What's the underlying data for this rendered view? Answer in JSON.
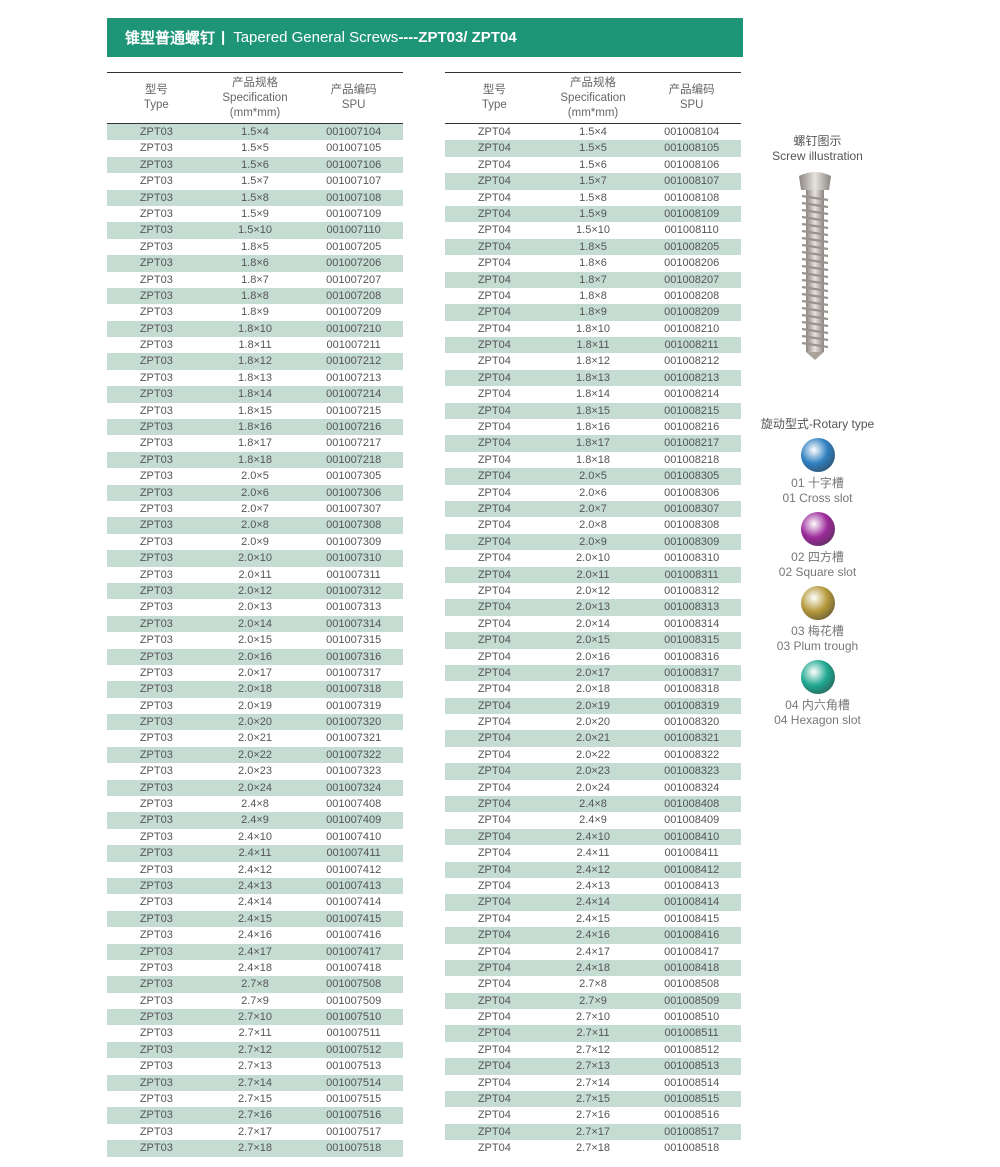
{
  "header": {
    "title_cn": "锥型普通螺钉",
    "separator": "|",
    "title_en": "Tapered General Screws",
    "title_code": "----ZPT03/ ZPT04",
    "color": "#1f9577"
  },
  "columns": [
    {
      "cn": "型号",
      "en": "Type"
    },
    {
      "cn": "产品规格",
      "en": "Specification",
      "unit": "(mm*mm)"
    },
    {
      "cn": "产品编码",
      "en": "SPU"
    }
  ],
  "row_shade_color": "#c5dcd3",
  "left_table": {
    "rows": [
      [
        "ZPT03",
        "1.5×4",
        "001007104"
      ],
      [
        "ZPT03",
        "1.5×5",
        "001007105"
      ],
      [
        "ZPT03",
        "1.5×6",
        "001007106"
      ],
      [
        "ZPT03",
        "1.5×7",
        "001007107"
      ],
      [
        "ZPT03",
        "1.5×8",
        "001007108"
      ],
      [
        "ZPT03",
        "1.5×9",
        "001007109"
      ],
      [
        "ZPT03",
        "1.5×10",
        "001007110"
      ],
      [
        "ZPT03",
        "1.8×5",
        "001007205"
      ],
      [
        "ZPT03",
        "1.8×6",
        "001007206"
      ],
      [
        "ZPT03",
        "1.8×7",
        "001007207"
      ],
      [
        "ZPT03",
        "1.8×8",
        "001007208"
      ],
      [
        "ZPT03",
        "1.8×9",
        "001007209"
      ],
      [
        "ZPT03",
        "1.8×10",
        "001007210"
      ],
      [
        "ZPT03",
        "1.8×11",
        "001007211"
      ],
      [
        "ZPT03",
        "1.8×12",
        "001007212"
      ],
      [
        "ZPT03",
        "1.8×13",
        "001007213"
      ],
      [
        "ZPT03",
        "1.8×14",
        "001007214"
      ],
      [
        "ZPT03",
        "1.8×15",
        "001007215"
      ],
      [
        "ZPT03",
        "1.8×16",
        "001007216"
      ],
      [
        "ZPT03",
        "1.8×17",
        "001007217"
      ],
      [
        "ZPT03",
        "1.8×18",
        "001007218"
      ],
      [
        "ZPT03",
        "2.0×5",
        "001007305"
      ],
      [
        "ZPT03",
        "2.0×6",
        "001007306"
      ],
      [
        "ZPT03",
        "2.0×7",
        "001007307"
      ],
      [
        "ZPT03",
        "2.0×8",
        "001007308"
      ],
      [
        "ZPT03",
        "2.0×9",
        "001007309"
      ],
      [
        "ZPT03",
        "2.0×10",
        "001007310"
      ],
      [
        "ZPT03",
        "2.0×11",
        "001007311"
      ],
      [
        "ZPT03",
        "2.0×12",
        "001007312"
      ],
      [
        "ZPT03",
        "2.0×13",
        "001007313"
      ],
      [
        "ZPT03",
        "2.0×14",
        "001007314"
      ],
      [
        "ZPT03",
        "2.0×15",
        "001007315"
      ],
      [
        "ZPT03",
        "2.0×16",
        "001007316"
      ],
      [
        "ZPT03",
        "2.0×17",
        "001007317"
      ],
      [
        "ZPT03",
        "2.0×18",
        "001007318"
      ],
      [
        "ZPT03",
        "2.0×19",
        "001007319"
      ],
      [
        "ZPT03",
        "2.0×20",
        "001007320"
      ],
      [
        "ZPT03",
        "2.0×21",
        "001007321"
      ],
      [
        "ZPT03",
        "2.0×22",
        "001007322"
      ],
      [
        "ZPT03",
        "2.0×23",
        "001007323"
      ],
      [
        "ZPT03",
        "2.0×24",
        "001007324"
      ],
      [
        "ZPT03",
        "2.4×8",
        "001007408"
      ],
      [
        "ZPT03",
        "2.4×9",
        "001007409"
      ],
      [
        "ZPT03",
        "2.4×10",
        "001007410"
      ],
      [
        "ZPT03",
        "2.4×11",
        "001007411"
      ],
      [
        "ZPT03",
        "2.4×12",
        "001007412"
      ],
      [
        "ZPT03",
        "2.4×13",
        "001007413"
      ],
      [
        "ZPT03",
        "2.4×14",
        "001007414"
      ],
      [
        "ZPT03",
        "2.4×15",
        "001007415"
      ],
      [
        "ZPT03",
        "2.4×16",
        "001007416"
      ],
      [
        "ZPT03",
        "2.4×17",
        "001007417"
      ],
      [
        "ZPT03",
        "2.4×18",
        "001007418"
      ],
      [
        "ZPT03",
        "2.7×8",
        "001007508"
      ],
      [
        "ZPT03",
        "2.7×9",
        "001007509"
      ],
      [
        "ZPT03",
        "2.7×10",
        "001007510"
      ],
      [
        "ZPT03",
        "2.7×11",
        "001007511"
      ],
      [
        "ZPT03",
        "2.7×12",
        "001007512"
      ],
      [
        "ZPT03",
        "2.7×13",
        "001007513"
      ],
      [
        "ZPT03",
        "2.7×14",
        "001007514"
      ],
      [
        "ZPT03",
        "2.7×15",
        "001007515"
      ],
      [
        "ZPT03",
        "2.7×16",
        "001007516"
      ],
      [
        "ZPT03",
        "2.7×17",
        "001007517"
      ],
      [
        "ZPT03",
        "2.7×18",
        "001007518"
      ]
    ]
  },
  "right_table": {
    "rows": [
      [
        "ZPT04",
        "1.5×4",
        "001008104"
      ],
      [
        "ZPT04",
        "1.5×5",
        "001008105"
      ],
      [
        "ZPT04",
        "1.5×6",
        "001008106"
      ],
      [
        "ZPT04",
        "1.5×7",
        "001008107"
      ],
      [
        "ZPT04",
        "1.5×8",
        "001008108"
      ],
      [
        "ZPT04",
        "1.5×9",
        "001008109"
      ],
      [
        "ZPT04",
        "1.5×10",
        "001008110"
      ],
      [
        "ZPT04",
        "1.8×5",
        "001008205"
      ],
      [
        "ZPT04",
        "1.8×6",
        "001008206"
      ],
      [
        "ZPT04",
        "1.8×7",
        "001008207"
      ],
      [
        "ZPT04",
        "1.8×8",
        "001008208"
      ],
      [
        "ZPT04",
        "1.8×9",
        "001008209"
      ],
      [
        "ZPT04",
        "1.8×10",
        "001008210"
      ],
      [
        "ZPT04",
        "1.8×11",
        "001008211"
      ],
      [
        "ZPT04",
        "1.8×12",
        "001008212"
      ],
      [
        "ZPT04",
        "1.8×13",
        "001008213"
      ],
      [
        "ZPT04",
        "1.8×14",
        "001008214"
      ],
      [
        "ZPT04",
        "1.8×15",
        "001008215"
      ],
      [
        "ZPT04",
        "1.8×16",
        "001008216"
      ],
      [
        "ZPT04",
        "1.8×17",
        "001008217"
      ],
      [
        "ZPT04",
        "1.8×18",
        "001008218"
      ],
      [
        "ZPT04",
        "2.0×5",
        "001008305"
      ],
      [
        "ZPT04",
        "2.0×6",
        "001008306"
      ],
      [
        "ZPT04",
        "2.0×7",
        "001008307"
      ],
      [
        "ZPT04",
        "2.0×8",
        "001008308"
      ],
      [
        "ZPT04",
        "2.0×9",
        "001008309"
      ],
      [
        "ZPT04",
        "2.0×10",
        "001008310"
      ],
      [
        "ZPT04",
        "2.0×11",
        "001008311"
      ],
      [
        "ZPT04",
        "2.0×12",
        "001008312"
      ],
      [
        "ZPT04",
        "2.0×13",
        "001008313"
      ],
      [
        "ZPT04",
        "2.0×14",
        "001008314"
      ],
      [
        "ZPT04",
        "2.0×15",
        "001008315"
      ],
      [
        "ZPT04",
        "2.0×16",
        "001008316"
      ],
      [
        "ZPT04",
        "2.0×17",
        "001008317"
      ],
      [
        "ZPT04",
        "2.0×18",
        "001008318"
      ],
      [
        "ZPT04",
        "2.0×19",
        "001008319"
      ],
      [
        "ZPT04",
        "2.0×20",
        "001008320"
      ],
      [
        "ZPT04",
        "2.0×21",
        "001008321"
      ],
      [
        "ZPT04",
        "2.0×22",
        "001008322"
      ],
      [
        "ZPT04",
        "2.0×23",
        "001008323"
      ],
      [
        "ZPT04",
        "2.0×24",
        "001008324"
      ],
      [
        "ZPT04",
        "2.4×8",
        "001008408"
      ],
      [
        "ZPT04",
        "2.4×9",
        "001008409"
      ],
      [
        "ZPT04",
        "2.4×10",
        "001008410"
      ],
      [
        "ZPT04",
        "2.4×11",
        "001008411"
      ],
      [
        "ZPT04",
        "2.4×12",
        "001008412"
      ],
      [
        "ZPT04",
        "2.4×13",
        "001008413"
      ],
      [
        "ZPT04",
        "2.4×14",
        "001008414"
      ],
      [
        "ZPT04",
        "2.4×15",
        "001008415"
      ],
      [
        "ZPT04",
        "2.4×16",
        "001008416"
      ],
      [
        "ZPT04",
        "2.4×17",
        "001008417"
      ],
      [
        "ZPT04",
        "2.4×18",
        "001008418"
      ],
      [
        "ZPT04",
        "2.7×8",
        "001008508"
      ],
      [
        "ZPT04",
        "2.7×9",
        "001008509"
      ],
      [
        "ZPT04",
        "2.7×10",
        "001008510"
      ],
      [
        "ZPT04",
        "2.7×11",
        "001008511"
      ],
      [
        "ZPT04",
        "2.7×12",
        "001008512"
      ],
      [
        "ZPT04",
        "2.7×13",
        "001008513"
      ],
      [
        "ZPT04",
        "2.7×14",
        "001008514"
      ],
      [
        "ZPT04",
        "2.7×15",
        "001008515"
      ],
      [
        "ZPT04",
        "2.7×16",
        "001008516"
      ],
      [
        "ZPT04",
        "2.7×17",
        "001008517"
      ],
      [
        "ZPT04",
        "2.7×18",
        "001008518"
      ]
    ]
  },
  "illustration": {
    "cn": "螺钉图示",
    "en": "Screw illustration"
  },
  "rotary": {
    "title": "旋动型式-Rotary type",
    "types": [
      {
        "cn": "01 十字槽",
        "en": "01 Cross slot",
        "color": "#2f7fc0",
        "icon": "cross-slot-icon"
      },
      {
        "cn": "02 四方槽",
        "en": "02 Square slot",
        "color": "#9c2a9a",
        "icon": "square-slot-icon"
      },
      {
        "cn": "03 梅花槽",
        "en": "03 Plum trough",
        "color": "#b59a3c",
        "icon": "plum-trough-icon"
      },
      {
        "cn": "04 内六角槽",
        "en": "04 Hexagon slot",
        "color": "#1fa890",
        "icon": "hexagon-slot-icon"
      }
    ]
  }
}
